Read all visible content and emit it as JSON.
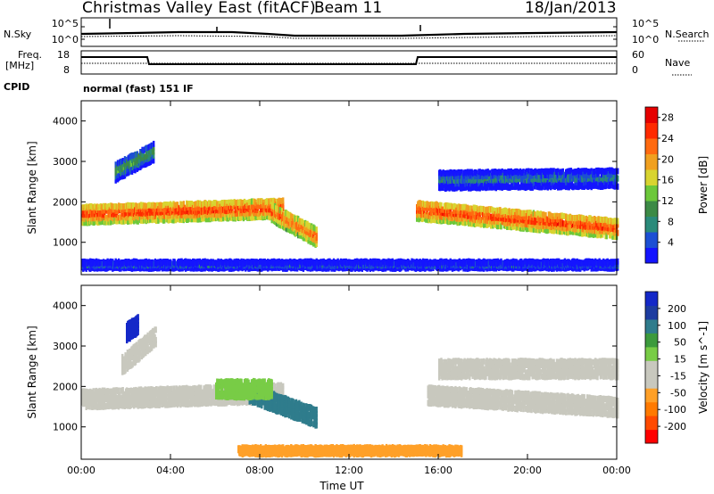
{
  "header": {
    "title": "Christmas Valley East (fitACF)",
    "beam": "Beam 11",
    "date": "18/Jan/2013"
  },
  "top_panels": {
    "noise": {
      "left_label": "N.Sky",
      "right_label": "N.Search",
      "left_ticks": [
        "10^5",
        "10^0"
      ],
      "right_ticks": [
        "10^5",
        "10^0"
      ]
    },
    "freq": {
      "left_label_1": "Freq.",
      "left_label_2": "[MHz]",
      "right_label": "Nave",
      "left_ticks": [
        "18",
        "8"
      ],
      "right_ticks": [
        "60",
        "0"
      ]
    },
    "cpid": {
      "label": "CPID",
      "value": "normal (fast) 151 IF"
    }
  },
  "colors": {
    "power": [
      "#1414ff",
      "#1c4fd4",
      "#2a8a7a",
      "#3c8a46",
      "#6cc83a",
      "#d8d430",
      "#f0a020",
      "#ff6a10",
      "#ff2a00",
      "#e60000"
    ],
    "velocity": [
      "#ff0000",
      "#ff4a00",
      "#ff7a00",
      "#ffa028",
      "#c8c8be",
      "#c8c8be",
      "#78cc46",
      "#3c9a3c",
      "#2f7c8c",
      "#1d3ca0",
      "#1428c8"
    ]
  },
  "chart_data": [
    {
      "type": "heatmap",
      "title": "",
      "xlabel": "",
      "ylabel": "Slant Range [km]",
      "x_ticks": [
        "00:00",
        "04:00",
        "08:00",
        "12:00",
        "16:00",
        "20:00",
        "00:00"
      ],
      "y_ticks": [
        "1000",
        "2000",
        "3000",
        "4000"
      ],
      "ylim": [
        200,
        4500
      ],
      "colorbar": {
        "label": "Power [dB]",
        "ticks": [
          "4",
          "8",
          "12",
          "16",
          "20",
          "24",
          "28"
        ],
        "range": [
          0,
          30
        ]
      },
      "regions": [
        {
          "t_start": 0.0,
          "t_end": 9.0,
          "range_center_start": 1650,
          "range_center_end": 1800,
          "value": 26
        },
        {
          "t_start": 8.5,
          "t_end": 10.5,
          "range_center_start": 1700,
          "range_center_end": 1100,
          "value": 24
        },
        {
          "t_start": 1.5,
          "t_end": 3.2,
          "range_center_start": 2700,
          "range_center_end": 3200,
          "value": 12
        },
        {
          "t_start": 15.0,
          "t_end": 24.0,
          "range_center_start": 1750,
          "range_center_end": 1300,
          "value": 26
        },
        {
          "t_start": 16.0,
          "t_end": 24.0,
          "range_center_start": 2500,
          "range_center_end": 2550,
          "value": 8
        },
        {
          "t_start": 0.0,
          "t_end": 24.0,
          "range_center_start": 380,
          "range_center_end": 380,
          "value": 6
        }
      ]
    },
    {
      "type": "heatmap",
      "title": "",
      "xlabel": "Time UT",
      "ylabel": "Slant Range [km]",
      "x_ticks": [
        "00:00",
        "04:00",
        "08:00",
        "12:00",
        "16:00",
        "20:00",
        "00:00"
      ],
      "y_ticks": [
        "1000",
        "2000",
        "3000",
        "4000"
      ],
      "ylim": [
        200,
        4500
      ],
      "colorbar": {
        "label": "Velocity [m s^-1]",
        "ticks": [
          "200",
          "100",
          "50",
          "15",
          "-15",
          "-50",
          "-100",
          "-200"
        ],
        "range": [
          -250,
          250
        ]
      },
      "regions": [
        {
          "t_start": 0.0,
          "t_end": 9.0,
          "range_center_start": 1650,
          "range_center_end": 1800,
          "value": 0
        },
        {
          "t_start": 1.8,
          "t_end": 3.3,
          "range_center_start": 2500,
          "range_center_end": 3200,
          "value": 0
        },
        {
          "t_start": 2.0,
          "t_end": 2.5,
          "range_center_start": 3300,
          "range_center_end": 3500,
          "value": 220
        },
        {
          "t_start": 7.5,
          "t_end": 10.5,
          "range_center_start": 1800,
          "range_center_end": 1200,
          "value": 150
        },
        {
          "t_start": 6.0,
          "t_end": 8.5,
          "range_center_start": 1900,
          "range_center_end": 1900,
          "value": 60
        },
        {
          "t_start": 15.5,
          "t_end": 24.0,
          "range_center_start": 1750,
          "range_center_end": 1450,
          "value": 0
        },
        {
          "t_start": 16.0,
          "t_end": 24.0,
          "range_center_start": 2400,
          "range_center_end": 2400,
          "value": -20
        },
        {
          "t_start": 7.0,
          "t_end": 17.0,
          "range_center_start": 350,
          "range_center_end": 350,
          "value": -90
        }
      ]
    }
  ]
}
